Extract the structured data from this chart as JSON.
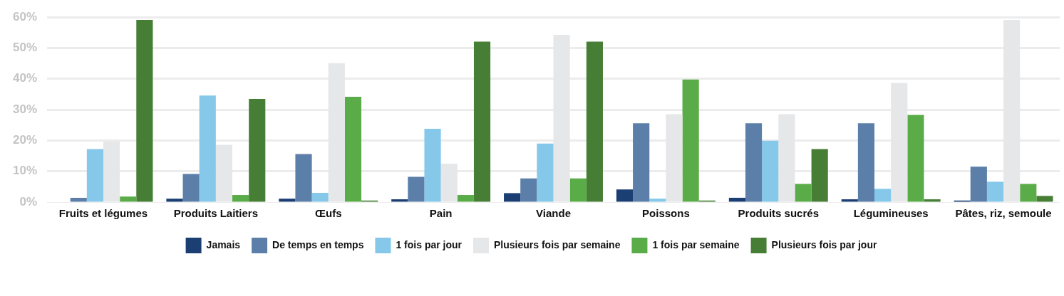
{
  "chart_data": {
    "type": "bar",
    "categories": [
      "Fruits et légumes",
      "Produits Laitiers",
      "Œufs",
      "Pain",
      "Viande",
      "Poissons",
      "Produits sucrés",
      "Légumineuses",
      "Pâtes, riz, semoule"
    ],
    "series": [
      {
        "name": "Jamais",
        "color": "#1b3f73",
        "values": [
          0,
          1.1,
          1.1,
          0.9,
          2.9,
          4.1,
          1.4,
          0.9,
          0.5
        ]
      },
      {
        "name": "De temps en temps",
        "color": "#5b7fa9",
        "values": [
          1.4,
          9.1,
          15.6,
          8.2,
          7.7,
          25.6,
          25.6,
          25.6,
          11.5
        ]
      },
      {
        "name": "1 fois par jour",
        "color": "#85c8ea",
        "values": [
          17.2,
          34.6,
          3.0,
          23.8,
          19.0,
          1.1,
          19.9,
          4.3,
          6.6
        ]
      },
      {
        "name": "Plusieurs fois par semaine",
        "color": "#e6e7e9",
        "values": [
          19.7,
          18.6,
          45.1,
          12.5,
          54.3,
          28.5,
          28.5,
          38.7,
          59.1
        ]
      },
      {
        "name": "1 fois par semaine",
        "color": "#5aac48",
        "values": [
          1.8,
          2.3,
          34.2,
          2.3,
          7.7,
          39.8,
          5.9,
          28.3,
          5.9
        ]
      },
      {
        "name": "Plusieurs fois par jour",
        "color": "#477e35",
        "values": [
          59.1,
          33.5,
          0.5,
          52.1,
          52.1,
          0.5,
          17.2,
          0.9,
          2.0
        ]
      }
    ],
    "ylim": [
      0,
      60
    ],
    "yticks": [
      {
        "value": 0,
        "label": "0%"
      },
      {
        "value": 10,
        "label": "10%"
      },
      {
        "value": 20,
        "label": "20%"
      },
      {
        "value": 30,
        "label": "30%"
      },
      {
        "value": 40,
        "label": "40%"
      },
      {
        "value": 50,
        "label": "50%"
      },
      {
        "value": 60,
        "label": "60%"
      }
    ],
    "grid": "y",
    "legend": "bottom"
  }
}
